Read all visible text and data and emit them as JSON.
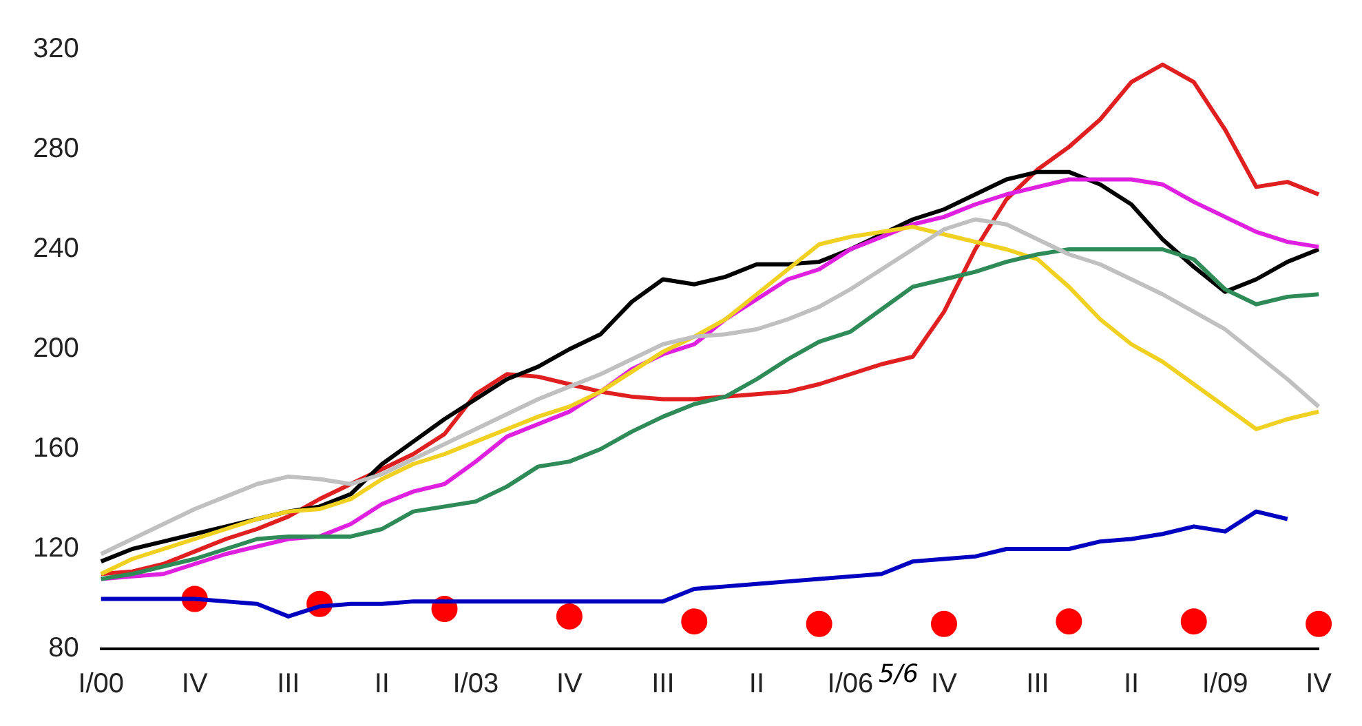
{
  "chart_data": {
    "type": "line",
    "categories": [
      "I/00",
      null,
      null,
      "IV",
      null,
      null,
      "III",
      null,
      null,
      "II",
      null,
      null,
      "I/03",
      null,
      null,
      "IV",
      null,
      null,
      "III",
      null,
      null,
      "II",
      null,
      null,
      "I/06",
      null,
      null,
      "IV",
      null,
      null,
      "III",
      null,
      null,
      "II",
      null,
      null,
      "I/09",
      null,
      null,
      "IV"
    ],
    "series": [
      {
        "color": "#c0c0c0",
        "values": [
          118,
          124,
          130,
          136,
          141,
          146,
          149,
          148,
          146,
          150,
          156,
          162,
          168,
          174,
          180,
          185,
          190,
          196,
          202,
          205,
          206,
          208,
          212,
          217,
          224,
          232,
          240,
          248,
          252,
          250,
          244,
          238,
          234,
          228,
          222,
          215,
          208,
          198,
          188,
          177
        ]
      },
      {
        "color": "#2e8b57",
        "values": [
          108,
          110,
          113,
          116,
          120,
          124,
          125,
          125,
          125,
          128,
          135,
          137,
          139,
          145,
          153,
          155,
          160,
          167,
          173,
          178,
          181,
          188,
          196,
          203,
          207,
          216,
          225,
          228,
          231,
          235,
          238,
          240,
          240,
          240,
          240,
          236,
          224,
          218,
          221,
          222
        ]
      },
      {
        "color": "#f0d020",
        "values": [
          110,
          116,
          120,
          124,
          128,
          132,
          135,
          136,
          140,
          148,
          154,
          158,
          163,
          168,
          173,
          177,
          183,
          191,
          199,
          205,
          212,
          222,
          232,
          242,
          245,
          247,
          249,
          246,
          243,
          240,
          236,
          225,
          212,
          202,
          195,
          186,
          177,
          168,
          172,
          175
        ]
      },
      {
        "color": "#e020e0",
        "values": [
          108,
          109,
          110,
          114,
          118,
          121,
          124,
          125,
          130,
          138,
          143,
          146,
          155,
          165,
          170,
          175,
          183,
          192,
          198,
          202,
          212,
          220,
          228,
          232,
          240,
          245,
          250,
          253,
          258,
          262,
          265,
          268,
          268,
          268,
          266,
          259,
          253,
          247,
          243,
          241
        ]
      },
      {
        "color": "#000000",
        "values": [
          115,
          120,
          123,
          126,
          129,
          132,
          135,
          137,
          142,
          154,
          163,
          172,
          180,
          188,
          193,
          200,
          206,
          219,
          228,
          226,
          229,
          234,
          234,
          235,
          240,
          246,
          252,
          256,
          262,
          268,
          271,
          271,
          266,
          258,
          244,
          233,
          223,
          228,
          235,
          240
        ]
      },
      {
        "color": "#e02020",
        "values": [
          110,
          111,
          114,
          119,
          124,
          128,
          133,
          140,
          146,
          152,
          158,
          166,
          182,
          190,
          189,
          186,
          183,
          181,
          180,
          180,
          181,
          182,
          183,
          186,
          190,
          194,
          197,
          215,
          240,
          260,
          272,
          281,
          292,
          307,
          314,
          307,
          288,
          265,
          267,
          262
        ]
      },
      {
        "color": "#0000c0",
        "values": [
          100,
          100,
          100,
          100,
          99,
          98,
          93,
          97,
          98,
          98,
          99,
          99,
          99,
          99,
          99,
          99,
          99,
          99,
          99,
          104,
          105,
          106,
          107,
          108,
          109,
          110,
          115,
          116,
          117,
          120,
          120,
          120,
          123,
          124,
          126,
          129,
          127,
          135,
          132,
          null
        ]
      },
      {
        "type": "scatter",
        "color": "#ff0000",
        "values": [
          null,
          null,
          null,
          100,
          null,
          null,
          null,
          98,
          null,
          null,
          null,
          96,
          null,
          null,
          null,
          93,
          null,
          null,
          null,
          91,
          null,
          null,
          null,
          90,
          null,
          null,
          null,
          90,
          null,
          null,
          null,
          91,
          null,
          null,
          null,
          91,
          null,
          null,
          null,
          90
        ]
      }
    ],
    "ylim": [
      80,
      320
    ],
    "yticks": [
      80,
      120,
      160,
      200,
      240,
      280,
      320
    ],
    "grid": false,
    "legend": false,
    "annotations": [
      "5/6"
    ]
  }
}
